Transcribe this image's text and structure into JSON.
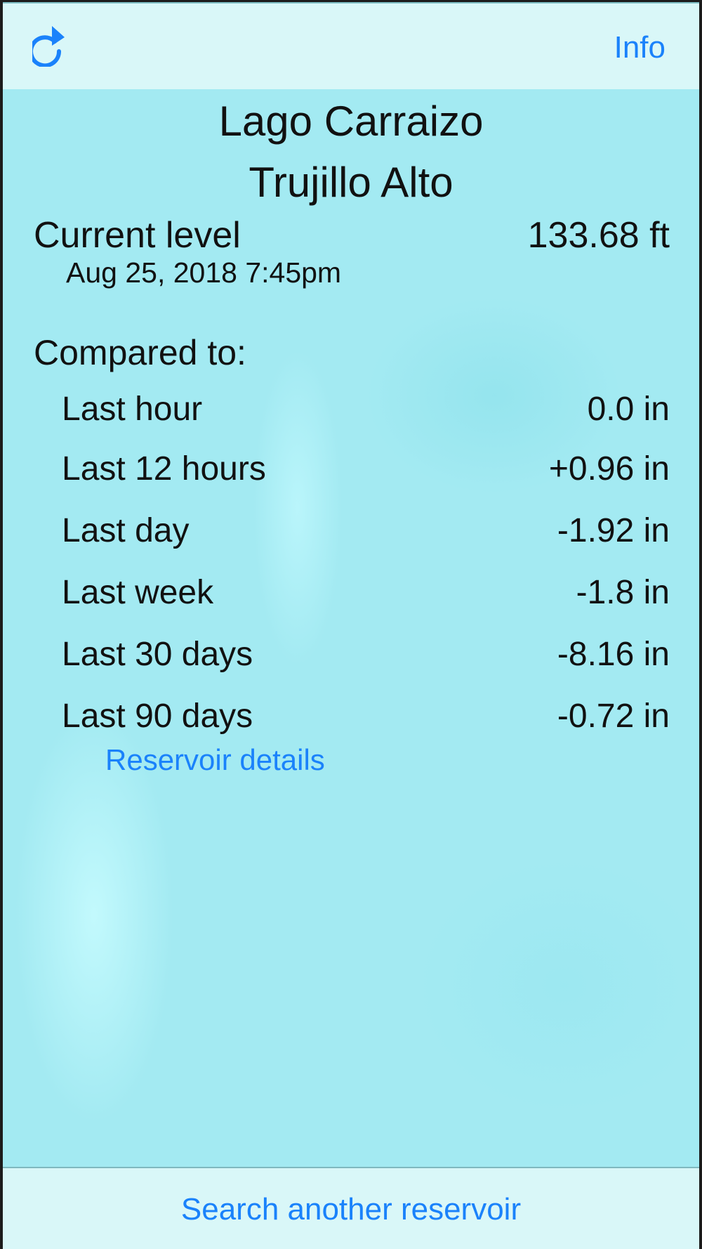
{
  "header": {
    "refresh_icon": "refresh-icon",
    "info_label": "Info"
  },
  "reservoir": {
    "name": "Lago Carraizo",
    "location": "Trujillo Alto"
  },
  "current": {
    "label": "Current level",
    "value": "133.68 ft",
    "timestamp": "Aug 25, 2018 7:45pm"
  },
  "compared": {
    "heading": "Compared to:",
    "rows": [
      {
        "label": "Last hour",
        "value": "0.0 in"
      },
      {
        "label": "Last 12 hours",
        "value": "+0.96 in"
      },
      {
        "label": "Last day",
        "value": "-1.92 in"
      },
      {
        "label": "Last week",
        "value": "-1.8 in"
      },
      {
        "label": "Last 30 days",
        "value": "-8.16 in"
      },
      {
        "label": "Last 90 days",
        "value": "-0.72 in"
      }
    ]
  },
  "details_link": "Reservoir details",
  "footer": {
    "search_label": "Search another reservoir"
  },
  "colors": {
    "accent": "#1a82fb",
    "bar": "#d9f7f8",
    "background": "#a3eaf2"
  }
}
